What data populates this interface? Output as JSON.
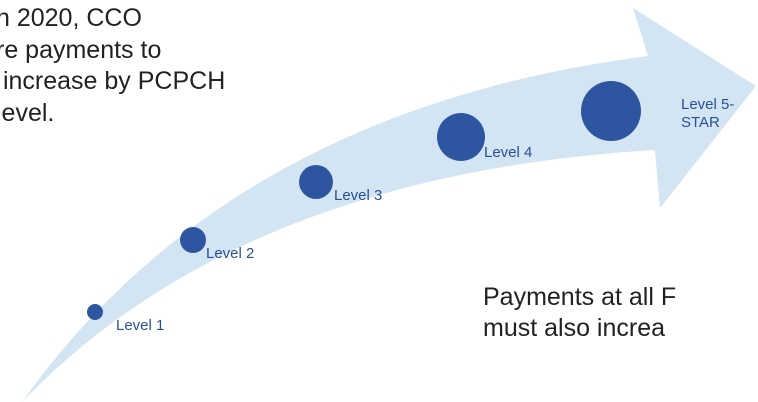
{
  "intro": {
    "lines": [
      "n 2020, CCO",
      "re payments to",
      " increase by PCPCH",
      "level."
    ]
  },
  "levels": [
    {
      "label": [
        "Level 1"
      ]
    },
    {
      "label": [
        "Level 2"
      ]
    },
    {
      "label": [
        "Level 3"
      ]
    },
    {
      "label": [
        "Level 4"
      ]
    },
    {
      "label": [
        "Level 5-",
        "STAR"
      ]
    }
  ],
  "note": {
    "lines": [
      "Payments at all F",
      "must also increa"
    ]
  }
}
